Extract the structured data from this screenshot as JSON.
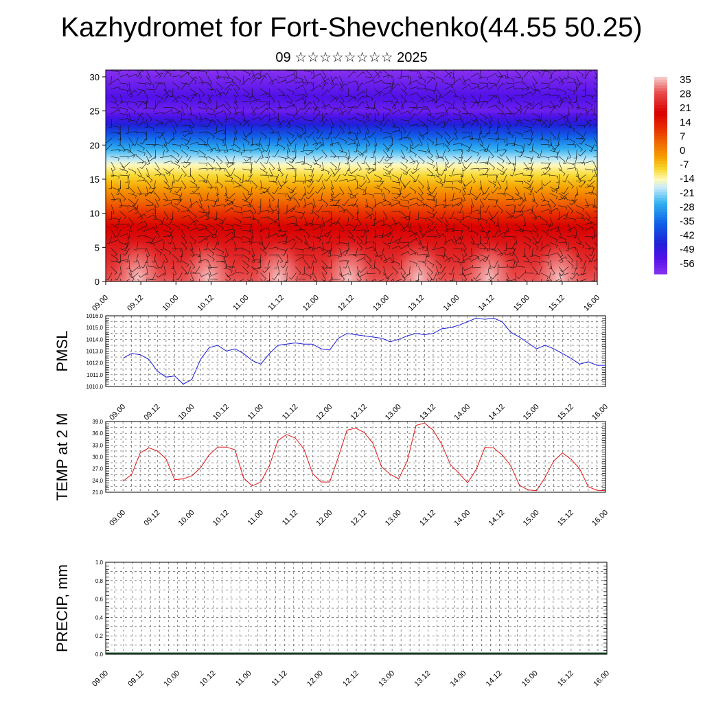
{
  "title": "Kazhydromet for Fort-Shevchenko(44.55 50.25)",
  "subtitle": "09 ☆☆☆☆☆☆☆☆ 2025",
  "time_labels": [
    "09.00",
    "09.12",
    "10.00",
    "10.12",
    "11.00",
    "11.12",
    "12.00",
    "12.12",
    "13.00",
    "13.12",
    "14.00",
    "14.12",
    "15.00",
    "15.12",
    "16.00"
  ],
  "colors": {
    "pmsl_line": "#1a1adb",
    "temp_line": "#e01414",
    "grid": "#555555"
  },
  "chart_data": [
    {
      "type": "heatmap",
      "title": "",
      "ylabel": "",
      "yticks": [
        "0",
        "5",
        "10",
        "15",
        "20",
        "25",
        "30"
      ],
      "ylim": [
        0,
        31
      ],
      "xlim_hours": [
        0,
        168
      ],
      "colorbar": {
        "labels": [
          "35",
          "28",
          "21",
          "14",
          "7",
          "0",
          "-7",
          "-14",
          "-21",
          "-28",
          "-35",
          "-42",
          "-49",
          "-56"
        ],
        "range": [
          -60,
          38
        ],
        "stops": [
          {
            "v": 38,
            "c": "#f6d0d0"
          },
          {
            "v": 30,
            "c": "#e84a4a"
          },
          {
            "v": 20,
            "c": "#d80000"
          },
          {
            "v": 12,
            "c": "#e83000"
          },
          {
            "v": 5,
            "c": "#f06a00"
          },
          {
            "v": -2,
            "c": "#f6a000"
          },
          {
            "v": -8,
            "c": "#f8d830"
          },
          {
            "v": -13,
            "c": "#fff8b8"
          },
          {
            "v": -17,
            "c": "#c8ecf8"
          },
          {
            "v": -25,
            "c": "#30b0f0"
          },
          {
            "v": -35,
            "c": "#1060e8"
          },
          {
            "v": -45,
            "c": "#2020d8"
          },
          {
            "v": -52,
            "c": "#5010e8"
          },
          {
            "v": -60,
            "c": "#8830f0"
          }
        ]
      },
      "profile": [
        {
          "h": 0,
          "t": 31
        },
        {
          "h": 3,
          "t": 26
        },
        {
          "h": 8,
          "t": 20
        },
        {
          "h": 11,
          "t": 8
        },
        {
          "h": 14,
          "t": -3
        },
        {
          "h": 17,
          "t": -13
        },
        {
          "h": 20,
          "t": -28
        },
        {
          "h": 23,
          "t": -45
        },
        {
          "h": 25,
          "t": -56
        },
        {
          "h": 27,
          "t": -52
        },
        {
          "h": 31,
          "t": -60
        }
      ]
    },
    {
      "type": "line",
      "title": "",
      "ylabel": "PMSL",
      "yticks": [
        "1010.0",
        "1011.0",
        "1012.0",
        "1013.0",
        "1014.0",
        "1015.0",
        "1016.0"
      ],
      "ylim": [
        1010,
        1016
      ],
      "xlim_hours": [
        -6,
        168
      ],
      "series": [
        {
          "name": "",
          "x_step_hours": 3,
          "values": [
            1012.4,
            1012.8,
            1012.7,
            1012.3,
            1011.3,
            1010.8,
            1010.9,
            1010.2,
            1010.6,
            1012.3,
            1013.3,
            1013.5,
            1013.0,
            1013.2,
            1012.8,
            1012.2,
            1011.9,
            1012.8,
            1013.5,
            1013.6,
            1013.7,
            1013.6,
            1013.6,
            1013.2,
            1013.1,
            1014.1,
            1014.5,
            1014.4,
            1014.3,
            1014.2,
            1014.1,
            1013.8,
            1014.0,
            1014.3,
            1014.5,
            1014.4,
            1014.5,
            1014.9,
            1015.0,
            1015.2,
            1015.5,
            1015.8,
            1015.7,
            1015.8,
            1015.5,
            1014.6,
            1014.2,
            1013.7,
            1013.2,
            1013.5,
            1013.2,
            1012.8,
            1012.4,
            1011.9,
            1012.1,
            1011.8,
            1011.8
          ]
        }
      ]
    },
    {
      "type": "line",
      "title": "",
      "ylabel": "TEMP at 2 M",
      "yticks": [
        "21.0",
        "24.0",
        "27.0",
        "30.0",
        "33.0",
        "36.0",
        "39.0"
      ],
      "ylim": [
        21,
        39
      ],
      "xlim_hours": [
        -6,
        168
      ],
      "series": [
        {
          "name": "",
          "x_step_hours": 3,
          "values": [
            23.8,
            25.5,
            31.0,
            32.3,
            31.5,
            29.5,
            24.2,
            24.4,
            25.2,
            27.2,
            30.5,
            32.5,
            32.5,
            31.8,
            24.6,
            22.6,
            23.6,
            27.8,
            34.2,
            35.7,
            34.8,
            32.0,
            25.8,
            23.6,
            23.6,
            30.0,
            36.8,
            37.3,
            36.2,
            33.5,
            27.5,
            25.6,
            24.4,
            29.0,
            38.0,
            38.6,
            36.8,
            33.2,
            28.0,
            25.8,
            23.4,
            26.8,
            32.4,
            32.3,
            30.5,
            27.8,
            22.8,
            21.6,
            21.4,
            24.8,
            29.0,
            31.0,
            29.4,
            27.0,
            22.4,
            21.5,
            21.4
          ]
        }
      ]
    },
    {
      "type": "bar",
      "title": "",
      "ylabel": "PRECIP, mm",
      "yticks": [
        "0.0",
        "0.2",
        "0.4",
        "0.6",
        "0.8",
        "1.0"
      ],
      "ylim": [
        0,
        1
      ],
      "xlim_hours": [
        0,
        168
      ],
      "values": []
    }
  ]
}
